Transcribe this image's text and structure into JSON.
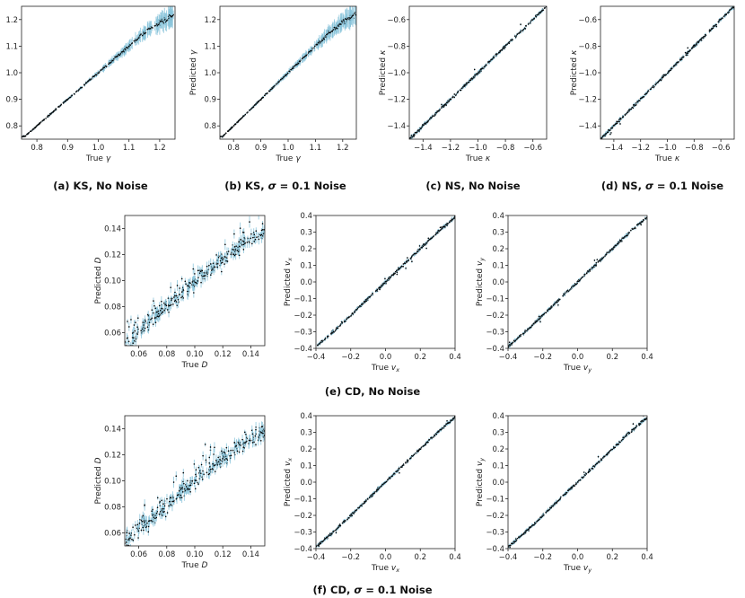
{
  "chart_data": [
    {
      "id": "ks-nonoise",
      "type": "scatter",
      "xlabel": "True γ",
      "ylabel": "Predicted γ",
      "xlim": [
        0.75,
        1.25
      ],
      "ylim": [
        0.75,
        1.25
      ],
      "xticks": [
        0.8,
        0.9,
        1.0,
        1.1,
        1.2
      ],
      "yticks": [
        0.8,
        0.9,
        1.0,
        1.1,
        1.2
      ],
      "tick_labels_x": [
        "0.8",
        "0.9",
        "1.0",
        "1.1",
        "1.2"
      ],
      "tick_labels_y": [
        "0.8",
        "0.9",
        "1.0",
        "1.1",
        "1.2"
      ],
      "series": [
        {
          "x": [
            0.76,
            0.8,
            0.85,
            0.9,
            0.95,
            1.0,
            1.05,
            1.1,
            1.15,
            1.2,
            1.25
          ],
          "y": [
            0.76,
            0.8,
            0.85,
            0.9,
            0.95,
            1.0,
            1.05,
            1.1,
            1.15,
            1.19,
            1.22
          ]
        }
      ],
      "caption": "(a) KS, No Noise"
    },
    {
      "id": "ks-noise",
      "type": "scatter",
      "xlabel": "True γ",
      "ylabel": "Predicted γ",
      "xlim": [
        0.75,
        1.25
      ],
      "ylim": [
        0.75,
        1.25
      ],
      "xticks": [
        0.8,
        0.9,
        1.0,
        1.1,
        1.2
      ],
      "yticks": [
        0.8,
        0.9,
        1.0,
        1.1,
        1.2
      ],
      "tick_labels_x": [
        "0.8",
        "0.9",
        "1.0",
        "1.1",
        "1.2"
      ],
      "tick_labels_y": [
        "0.8",
        "0.9",
        "1.0",
        "1.1",
        "1.2"
      ],
      "series": [
        {
          "x": [
            0.76,
            0.8,
            0.85,
            0.9,
            0.95,
            1.0,
            1.05,
            1.1,
            1.15,
            1.2,
            1.25
          ],
          "y": [
            0.76,
            0.8,
            0.85,
            0.9,
            0.95,
            1.0,
            1.05,
            1.1,
            1.15,
            1.19,
            1.22
          ]
        }
      ],
      "caption_prefix": "(b) KS, ",
      "caption_sigma": "σ",
      "caption_suffix": " = 0.1 Noise"
    },
    {
      "id": "ns-nonoise",
      "type": "scatter",
      "xlabel": "True κ",
      "ylabel": "Predicted κ",
      "xlim": [
        -1.5,
        -0.5
      ],
      "ylim": [
        -1.5,
        -0.5
      ],
      "xticks": [
        -1.4,
        -1.2,
        -1.0,
        -0.8,
        -0.6
      ],
      "yticks": [
        -1.4,
        -1.2,
        -1.0,
        -0.8,
        -0.6
      ],
      "tick_labels_x": [
        "−1.4",
        "−1.2",
        "−1.0",
        "−0.8",
        "−0.6"
      ],
      "tick_labels_y": [
        "−1.4",
        "−1.2",
        "−1.0",
        "−0.8",
        "−0.6"
      ],
      "series": [
        {
          "x": [
            -1.5,
            -1.4,
            -1.2,
            -1.0,
            -0.8,
            -0.6,
            -0.5
          ],
          "y": [
            -1.5,
            -1.4,
            -1.2,
            -1.0,
            -0.8,
            -0.6,
            -0.5
          ]
        }
      ],
      "caption": "(c) NS, No Noise"
    },
    {
      "id": "ns-noise",
      "type": "scatter",
      "xlabel": "True κ",
      "ylabel": "Predicted κ",
      "xlim": [
        -1.5,
        -0.5
      ],
      "ylim": [
        -1.5,
        -0.5
      ],
      "xticks": [
        -1.4,
        -1.2,
        -1.0,
        -0.8,
        -0.6
      ],
      "yticks": [
        -1.4,
        -1.2,
        -1.0,
        -0.8,
        -0.6
      ],
      "tick_labels_x": [
        "−1.4",
        "−1.2",
        "−1.0",
        "−0.8",
        "−0.6"
      ],
      "tick_labels_y": [
        "−1.4",
        "−1.2",
        "−1.0",
        "−0.8",
        "−0.6"
      ],
      "series": [
        {
          "x": [
            -1.5,
            -1.4,
            -1.2,
            -1.0,
            -0.8,
            -0.6,
            -0.5
          ],
          "y": [
            -1.5,
            -1.4,
            -1.2,
            -1.0,
            -0.8,
            -0.6,
            -0.5
          ]
        }
      ],
      "caption_prefix": "(d) NS, ",
      "caption_sigma": "σ",
      "caption_suffix": " = 0.1 Noise"
    },
    {
      "id": "cd-nonoise-d",
      "type": "scatter",
      "xlabel": "True D",
      "ylabel": "Predicted D",
      "xlim": [
        0.05,
        0.15
      ],
      "ylim": [
        0.05,
        0.15
      ],
      "xticks": [
        0.06,
        0.08,
        0.1,
        0.12,
        0.14
      ],
      "yticks": [
        0.06,
        0.08,
        0.1,
        0.12,
        0.14
      ],
      "tick_labels_x": [
        "0.06",
        "0.08",
        "0.10",
        "0.12",
        "0.14"
      ],
      "tick_labels_y": [
        "0.06",
        "0.08",
        "0.10",
        "0.12",
        "0.14"
      ],
      "series": [
        {
          "x": [
            0.052,
            0.06,
            0.07,
            0.08,
            0.09,
            0.1,
            0.11,
            0.12,
            0.13,
            0.14,
            0.15
          ],
          "y": [
            0.053,
            0.062,
            0.071,
            0.081,
            0.09,
            0.099,
            0.108,
            0.117,
            0.125,
            0.132,
            0.138
          ]
        }
      ]
    },
    {
      "id": "cd-nonoise-vx",
      "type": "scatter",
      "xlabel": "True v",
      "xlabel_sub": "x",
      "ylabel": "Predicted v",
      "ylabel_sub": "x",
      "xlim": [
        -0.4,
        0.4
      ],
      "ylim": [
        -0.4,
        0.4
      ],
      "xticks": [
        -0.4,
        -0.2,
        0,
        0.2,
        0.4
      ],
      "yticks": [
        -0.4,
        -0.3,
        -0.2,
        -0.1,
        0,
        0.1,
        0.2,
        0.3,
        0.4
      ],
      "tick_labels_x": [
        "−0.4",
        "−0.2",
        "0.0",
        "0.2",
        "0.4"
      ],
      "tick_labels_y": [
        "−0.4",
        "−0.3",
        "−0.2",
        "−0.1",
        "0.0",
        "0.1",
        "0.2",
        "0.3",
        "0.4"
      ],
      "series": [
        {
          "x": [
            -0.4,
            -0.3,
            -0.2,
            -0.1,
            0,
            0.1,
            0.2,
            0.3,
            0.4
          ],
          "y": [
            -0.39,
            -0.3,
            -0.2,
            -0.1,
            0,
            0.1,
            0.2,
            0.3,
            0.39
          ]
        }
      ]
    },
    {
      "id": "cd-nonoise-vy",
      "type": "scatter",
      "xlabel": "True v",
      "xlabel_sub": "y",
      "ylabel": "Predicted v",
      "ylabel_sub": "y",
      "xlim": [
        -0.4,
        0.4
      ],
      "ylim": [
        -0.4,
        0.4
      ],
      "xticks": [
        -0.4,
        -0.2,
        0,
        0.2,
        0.4
      ],
      "yticks": [
        -0.4,
        -0.3,
        -0.2,
        -0.1,
        0,
        0.1,
        0.2,
        0.3,
        0.4
      ],
      "tick_labels_x": [
        "−0.4",
        "−0.2",
        "0.0",
        "0.2",
        "0.4"
      ],
      "tick_labels_y": [
        "−0.4",
        "−0.3",
        "−0.2",
        "−0.1",
        "0.0",
        "0.1",
        "0.2",
        "0.3",
        "0.4"
      ],
      "series": [
        {
          "x": [
            -0.4,
            -0.3,
            -0.2,
            -0.1,
            0,
            0.1,
            0.2,
            0.3,
            0.4
          ],
          "y": [
            -0.39,
            -0.3,
            -0.2,
            -0.1,
            0,
            0.1,
            0.2,
            0.3,
            0.39
          ]
        }
      ]
    },
    {
      "id": "cd-noise-d",
      "type": "scatter",
      "xlabel": "True D",
      "ylabel": "Predicted D",
      "xlim": [
        0.05,
        0.15
      ],
      "ylim": [
        0.05,
        0.15
      ],
      "xticks": [
        0.06,
        0.08,
        0.1,
        0.12,
        0.14
      ],
      "yticks": [
        0.06,
        0.08,
        0.1,
        0.12,
        0.14
      ],
      "tick_labels_x": [
        "0.06",
        "0.08",
        "0.10",
        "0.12",
        "0.14"
      ],
      "tick_labels_y": [
        "0.06",
        "0.08",
        "0.10",
        "0.12",
        "0.14"
      ],
      "series": [
        {
          "x": [
            0.052,
            0.06,
            0.07,
            0.08,
            0.09,
            0.1,
            0.11,
            0.12,
            0.13,
            0.14,
            0.15
          ],
          "y": [
            0.054,
            0.063,
            0.072,
            0.082,
            0.091,
            0.1,
            0.109,
            0.117,
            0.125,
            0.131,
            0.137
          ]
        }
      ]
    },
    {
      "id": "cd-noise-vx",
      "type": "scatter",
      "xlabel": "True v",
      "xlabel_sub": "x",
      "ylabel": "Predicted v",
      "ylabel_sub": "x",
      "xlim": [
        -0.4,
        0.4
      ],
      "ylim": [
        -0.4,
        0.4
      ],
      "xticks": [
        -0.4,
        -0.2,
        0,
        0.2,
        0.4
      ],
      "yticks": [
        -0.4,
        -0.3,
        -0.2,
        -0.1,
        0,
        0.1,
        0.2,
        0.3,
        0.4
      ],
      "tick_labels_x": [
        "−0.4",
        "−0.2",
        "0.0",
        "0.2",
        "0.4"
      ],
      "tick_labels_y": [
        "−0.4",
        "−0.3",
        "−0.2",
        "−0.1",
        "0.0",
        "0.1",
        "0.2",
        "0.3",
        "0.4"
      ],
      "series": [
        {
          "x": [
            -0.4,
            -0.3,
            -0.2,
            -0.1,
            0,
            0.1,
            0.2,
            0.3,
            0.4
          ],
          "y": [
            -0.39,
            -0.3,
            -0.2,
            -0.1,
            0,
            0.1,
            0.2,
            0.3,
            0.39
          ]
        }
      ]
    },
    {
      "id": "cd-noise-vy",
      "type": "scatter",
      "xlabel": "True v",
      "xlabel_sub": "y",
      "ylabel": "Predicted v",
      "ylabel_sub": "y",
      "xlim": [
        -0.4,
        0.4
      ],
      "ylim": [
        -0.4,
        0.4
      ],
      "xticks": [
        -0.4,
        -0.2,
        0,
        0.2,
        0.4
      ],
      "yticks": [
        -0.4,
        -0.3,
        -0.2,
        -0.1,
        0,
        0.1,
        0.2,
        0.3,
        0.4
      ],
      "tick_labels_x": [
        "−0.4",
        "−0.2",
        "0.0",
        "0.2",
        "0.4"
      ],
      "tick_labels_y": [
        "−0.4",
        "−0.3",
        "−0.2",
        "−0.1",
        "0.0",
        "0.1",
        "0.2",
        "0.3",
        "0.4"
      ],
      "series": [
        {
          "x": [
            -0.4,
            -0.3,
            -0.2,
            -0.1,
            0,
            0.1,
            0.2,
            0.3,
            0.4
          ],
          "y": [
            -0.39,
            -0.3,
            -0.2,
            -0.1,
            0,
            0.1,
            0.2,
            0.3,
            0.39
          ]
        }
      ]
    }
  ],
  "captions": {
    "e": "(e) CD, No Noise",
    "f_prefix": "(f) CD, ",
    "f_sigma": "σ",
    "f_suffix": " = 0.1 Noise"
  },
  "colors": {
    "points": "#000000",
    "error_bars": "#89c4da",
    "axes": "#222222"
  }
}
